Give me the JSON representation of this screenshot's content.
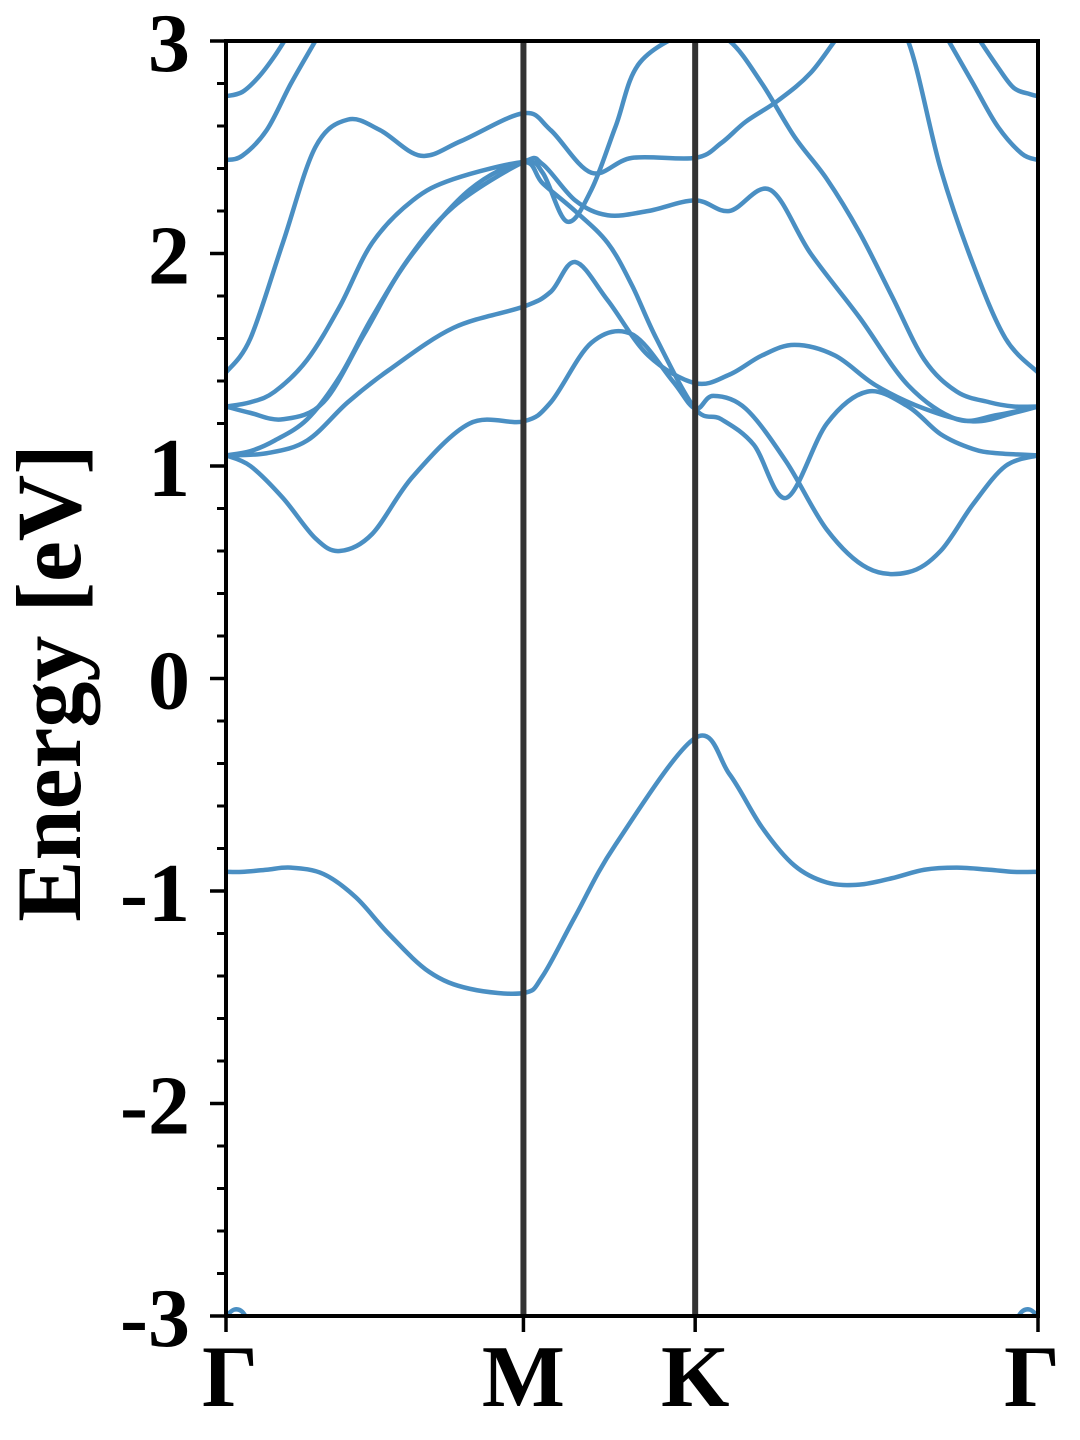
{
  "chart_data": {
    "type": "line",
    "title": "",
    "xlabel": "",
    "ylabel": "Energy [eV]",
    "ylim": [
      -3,
      3
    ],
    "xlim": [
      0,
      1
    ],
    "y_ticks": [
      {
        "value": 3,
        "label": "3"
      },
      {
        "value": 2,
        "label": "2"
      },
      {
        "value": 1,
        "label": "1"
      },
      {
        "value": 0,
        "label": "0"
      },
      {
        "value": -1,
        "label": "-1"
      },
      {
        "value": -2,
        "label": "-2"
      },
      {
        "value": -3,
        "label": "-3"
      }
    ],
    "y_minor_step": 0.2,
    "k_points": [
      {
        "position": 0.0,
        "label": "Γ"
      },
      {
        "position": 0.3663,
        "label": "M"
      },
      {
        "position": 0.5778,
        "label": "K"
      },
      {
        "position": 1.0,
        "label": "Γ"
      }
    ],
    "grid": false,
    "legend": "none",
    "band_color": "#4a8fc3",
    "kpath_line_color": "#333333",
    "bands": [
      {
        "x": [
          0,
          0.02,
          0.05,
          0.08,
          0.12,
          0.16,
          0.2,
          0.25,
          0.3,
          0.3663,
          0.39,
          0.43,
          0.48,
          0.5778,
          0.62,
          0.66,
          0.7,
          0.74,
          0.78,
          0.82,
          0.86,
          0.9,
          0.94,
          0.97,
          1.0
        ],
        "y": [
          -0.91,
          -0.91,
          -0.9,
          -0.89,
          -0.92,
          -1.03,
          -1.2,
          -1.38,
          -1.46,
          -1.48,
          -1.4,
          -1.12,
          -0.78,
          -0.28,
          -0.45,
          -0.7,
          -0.88,
          -0.96,
          -0.97,
          -0.94,
          -0.9,
          -0.89,
          -0.9,
          -0.91,
          -0.91
        ]
      },
      {
        "x": [
          0,
          0.03,
          0.07,
          0.11,
          0.14,
          0.18,
          0.23,
          0.3,
          0.3663,
          0.4,
          0.45,
          0.5,
          0.55,
          0.5778,
          0.6,
          0.64,
          0.69,
          0.74,
          0.79,
          0.84,
          0.88,
          0.92,
          0.96,
          1.0
        ],
        "y": [
          1.05,
          1.0,
          0.85,
          0.66,
          0.6,
          0.68,
          0.95,
          1.2,
          1.21,
          1.3,
          1.58,
          1.62,
          1.4,
          1.27,
          1.33,
          1.27,
          1.02,
          0.7,
          0.52,
          0.5,
          0.6,
          0.82,
          1.0,
          1.05
        ]
      },
      {
        "x": [
          0,
          0.05,
          0.1,
          0.15,
          0.2,
          0.28,
          0.3663,
          0.4,
          0.43,
          0.47,
          0.52,
          0.5778,
          0.62,
          0.66,
          0.7,
          0.75,
          0.8,
          0.86,
          0.92,
          0.97,
          1.0
        ],
        "y": [
          1.05,
          1.06,
          1.12,
          1.3,
          1.45,
          1.65,
          1.75,
          1.82,
          1.96,
          1.78,
          1.52,
          1.39,
          1.43,
          1.52,
          1.57,
          1.52,
          1.38,
          1.27,
          1.21,
          1.25,
          1.28
        ]
      },
      {
        "x": [
          0,
          0.03,
          0.06,
          0.1,
          0.14,
          0.18,
          0.23,
          0.3,
          0.3663,
          0.39,
          0.43,
          0.47,
          0.5,
          0.53,
          0.5778,
          0.61,
          0.65,
          0.69,
          0.74,
          0.79,
          0.84,
          0.88,
          0.92,
          0.95,
          1.0
        ],
        "y": [
          1.05,
          1.07,
          1.12,
          1.22,
          1.42,
          1.7,
          2.0,
          2.3,
          2.43,
          2.33,
          2.2,
          2.05,
          1.85,
          1.6,
          1.27,
          1.22,
          1.1,
          0.85,
          1.2,
          1.35,
          1.28,
          1.15,
          1.08,
          1.06,
          1.05
        ]
      },
      {
        "x": [
          0,
          0.03,
          0.07,
          0.12,
          0.17,
          0.22,
          0.28,
          0.3663,
          0.39,
          0.43,
          0.47,
          0.52,
          0.5778,
          0.62,
          0.67,
          0.72,
          0.78,
          0.84,
          0.9,
          0.95,
          1.0
        ],
        "y": [
          1.28,
          1.25,
          1.22,
          1.3,
          1.62,
          1.95,
          2.22,
          2.43,
          2.42,
          2.25,
          2.18,
          2.2,
          2.25,
          2.2,
          2.3,
          2.0,
          1.7,
          1.38,
          1.22,
          1.24,
          1.28
        ]
      },
      {
        "x": [
          0,
          0.03,
          0.06,
          0.1,
          0.14,
          0.18,
          0.23,
          0.28,
          0.3663,
          0.39,
          0.42,
          0.45,
          0.48,
          0.51,
          0.5778,
          0.62,
          0.66,
          0.7,
          0.74,
          0.78,
          0.82,
          0.86,
          0.9,
          0.94,
          0.97,
          1.0
        ],
        "y": [
          1.28,
          1.3,
          1.35,
          1.5,
          1.75,
          2.05,
          2.25,
          2.35,
          2.43,
          2.38,
          2.15,
          2.3,
          2.6,
          2.9,
          3.05,
          3.0,
          2.8,
          2.55,
          2.35,
          2.1,
          1.8,
          1.5,
          1.35,
          1.3,
          1.28,
          1.28
        ]
      },
      {
        "x": [
          0,
          0.03,
          0.07,
          0.11,
          0.15,
          0.19,
          0.24,
          0.29,
          0.3663,
          0.4,
          0.45,
          0.5,
          0.5778,
          0.61,
          0.64,
          0.68,
          0.72,
          0.76,
          0.8,
          0.84,
          0.88,
          0.92,
          0.96,
          1.0
        ],
        "y": [
          1.44,
          1.6,
          2.05,
          2.5,
          2.63,
          2.58,
          2.46,
          2.53,
          2.66,
          2.58,
          2.38,
          2.45,
          2.45,
          2.52,
          2.62,
          2.72,
          2.85,
          3.05,
          3.2,
          3.0,
          2.4,
          1.95,
          1.6,
          1.44
        ]
      },
      {
        "x": [
          0,
          0.02,
          0.05,
          0.08,
          0.11,
          0.14
        ],
        "y": [
          2.44,
          2.46,
          2.58,
          2.8,
          3.0,
          3.2
        ]
      },
      {
        "x": [
          0.86,
          0.89,
          0.92,
          0.95,
          0.98,
          1.0
        ],
        "y": [
          3.2,
          3.0,
          2.8,
          2.6,
          2.47,
          2.44
        ]
      },
      {
        "x": [
          0,
          0.02,
          0.04,
          0.06,
          0.08
        ],
        "y": [
          2.74,
          2.76,
          2.83,
          2.93,
          3.05
        ]
      },
      {
        "x": [
          0.92,
          0.95,
          0.97,
          0.99,
          1.0
        ],
        "y": [
          3.05,
          2.88,
          2.78,
          2.75,
          2.74
        ]
      },
      {
        "x": [
          0,
          0.01,
          0.02,
          0.03
        ],
        "y": [
          -3.0,
          -2.97,
          -2.98,
          -3.04
        ]
      },
      {
        "x": [
          0.97,
          0.98,
          0.99,
          1.0
        ],
        "y": [
          -3.04,
          -2.98,
          -2.97,
          -3.0
        ]
      }
    ]
  }
}
